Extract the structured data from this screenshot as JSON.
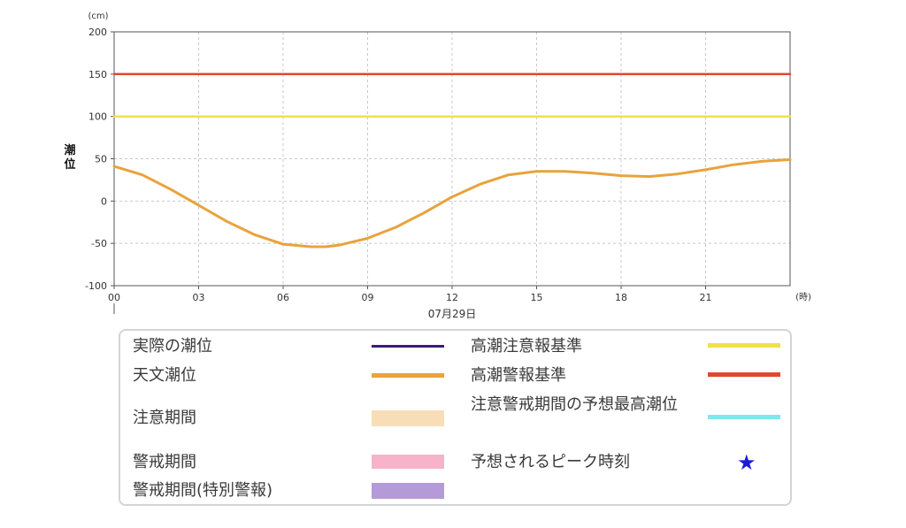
{
  "chart_data": {
    "type": "line",
    "y_unit": "(cm)",
    "x_unit": "(時)",
    "ylabel": "潮位",
    "date_label": "07月29日",
    "ylim": [
      -100,
      200
    ],
    "y_ticks": [
      -100,
      -50,
      0,
      50,
      100,
      150,
      200
    ],
    "xlim": [
      0,
      24
    ],
    "x_ticks": [
      0,
      3,
      6,
      9,
      12,
      15,
      18,
      21
    ],
    "x_tick_labels": [
      "00",
      "03",
      "06",
      "09",
      "12",
      "15",
      "18",
      "21"
    ],
    "grid": true,
    "series": [
      {
        "name": "天文潮位",
        "color": "#e8a33c",
        "x": [
          0,
          1,
          2,
          3,
          4,
          5,
          6,
          7,
          7.5,
          8,
          9,
          10,
          11,
          12,
          13,
          14,
          15,
          16,
          17,
          18,
          19,
          20,
          21,
          22,
          23,
          24
        ],
        "y": [
          41,
          31,
          14,
          -5,
          -24,
          -40,
          -51,
          -54,
          -54,
          -52,
          -44,
          -31,
          -14,
          5,
          20,
          31,
          35,
          35,
          33,
          30,
          29,
          32,
          37,
          43,
          47,
          49
        ]
      },
      {
        "name": "高潮注意報基準",
        "color": "#f0e04c",
        "x": [
          0,
          24
        ],
        "y": [
          100,
          100
        ]
      },
      {
        "name": "高潮警報基準",
        "color": "#dd4a2e",
        "x": [
          0,
          24
        ],
        "y": [
          150,
          150
        ]
      }
    ]
  },
  "legend": {
    "items": [
      {
        "label": "実際の潮位",
        "kind": "line",
        "color": "#3a1a80"
      },
      {
        "label": "天文潮位",
        "kind": "line",
        "color": "#e8a33c"
      },
      {
        "label": "注意期間",
        "kind": "box",
        "color": "#f8deb8"
      },
      {
        "label": "警戒期間",
        "kind": "box",
        "color": "#f6b3c9"
      },
      {
        "label": "警戒期間(特別警報)",
        "kind": "box",
        "color": "#b49ad8"
      },
      {
        "label": "高潮注意報基準",
        "kind": "line",
        "color": "#f0e04c"
      },
      {
        "label": "高潮警報基準",
        "kind": "line",
        "color": "#dd4a2e"
      },
      {
        "label": "注意警戒期間の予想最高潮位",
        "kind": "line",
        "color": "#7ee8f0"
      },
      {
        "label": "予想されるピーク時刻",
        "kind": "star",
        "color": "#1a1ad8",
        "symbol": "★"
      }
    ]
  }
}
